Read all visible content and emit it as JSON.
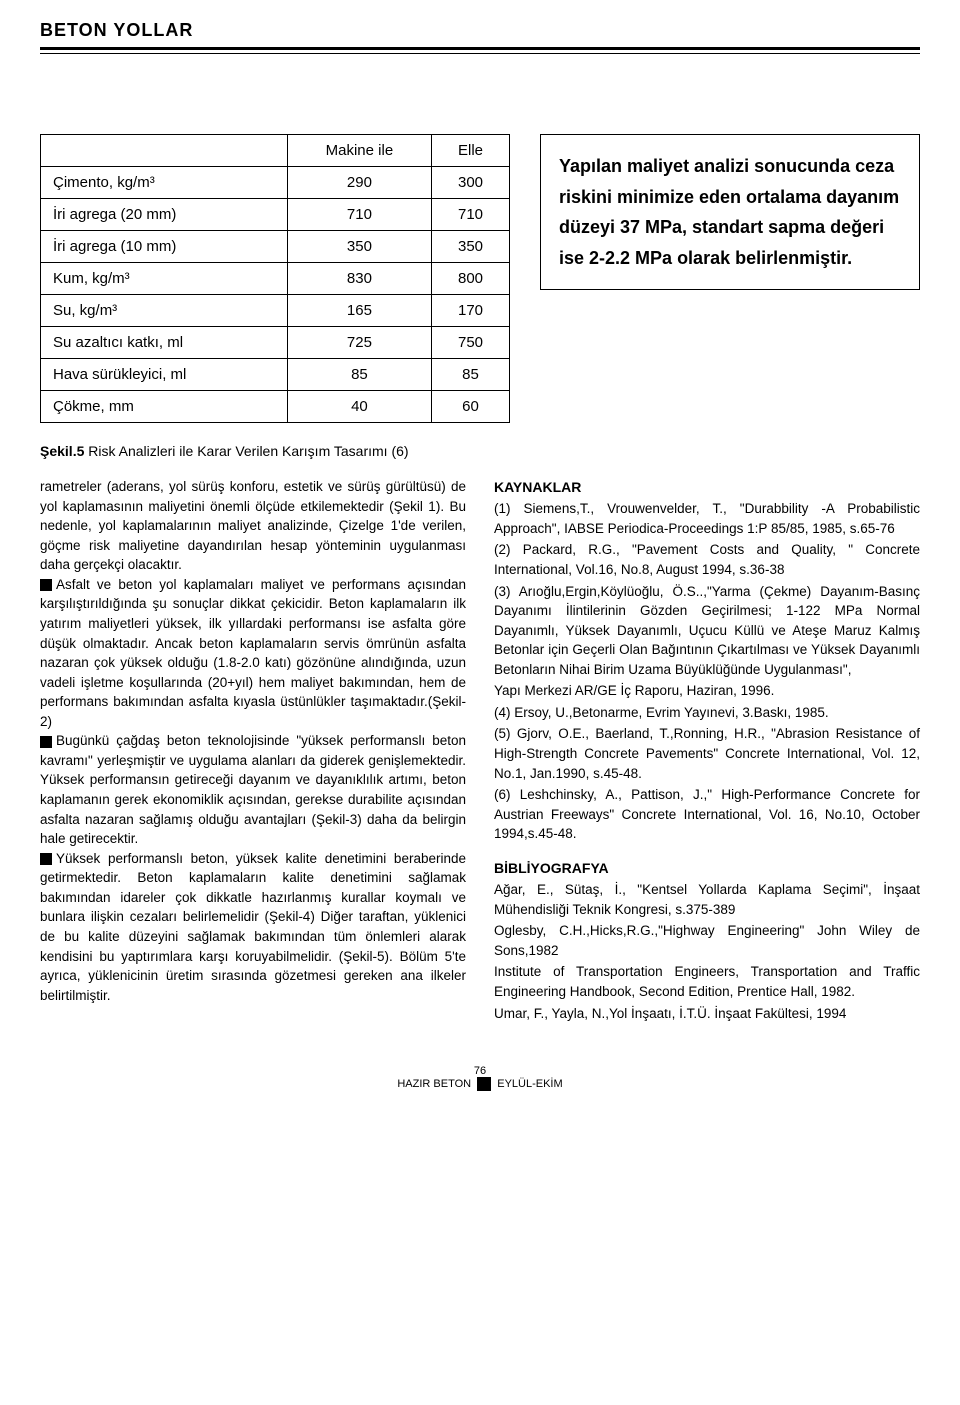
{
  "header": {
    "title": "BETON YOLLAR"
  },
  "table": {
    "col_headers": [
      "",
      "Makine ile",
      "Elle"
    ],
    "rows": [
      {
        "label": "Çimento, kg/m³",
        "v1": "290",
        "v2": "300"
      },
      {
        "label": "İri agrega (20 mm)",
        "v1": "710",
        "v2": "710"
      },
      {
        "label": "İri agrega (10 mm)",
        "v1": "350",
        "v2": "350"
      },
      {
        "label": "Kum, kg/m³",
        "v1": "830",
        "v2": "800"
      },
      {
        "label": "Su, kg/m³",
        "v1": "165",
        "v2": "170"
      },
      {
        "label": "Su azaltıcı katkı, ml",
        "v1": "725",
        "v2": "750"
      },
      {
        "label": "Hava sürükleyici, ml",
        "v1": "85",
        "v2": "85"
      },
      {
        "label": "Çökme, mm",
        "v1": "40",
        "v2": "60"
      }
    ]
  },
  "callout": {
    "text": "Yapılan maliyet analizi sonucunda ceza riskini minimize eden ortalama dayanım düzeyi 37 MPa, standart sapma değeri ise 2-2.2 MPa olarak belirlenmiştir."
  },
  "caption": {
    "label": "Şekil.5",
    "text": "Risk Analizleri ile Karar Verilen Karışım Tasarımı (6)"
  },
  "left_col": {
    "p1": "rametreler (aderans, yol sürüş konforu, estetik ve sürüş gürültüsü) de yol kaplamasının maliyetini önemli ölçüde etkilemektedir (Şekil 1). Bu nedenle, yol kaplamalarının maliyet analizinde, Çizelge 1'de verilen, göçme risk maliyetine dayandırılan hesap yönteminin uygulanması daha gerçekçi olacaktır.",
    "p2": "Asfalt ve beton yol kaplamaları maliyet ve performans açısından karşılıştırıldığında şu sonuçlar dikkat çekicidir. Beton kaplamaların ilk yatırım maliyetleri yüksek, ilk yıllardaki performansı ise asfalta göre düşük olmaktadır. Ancak beton kaplamaların servis ömrünün asfalta nazaran çok yüksek olduğu (1.8-2.0 katı) gözönüne alındığında, uzun vadeli işletme koşullarında (20+yıl) hem maliyet bakımından, hem de performans bakımından asfalta kıyasla üstünlükler taşımaktadır.(Şekil-2)",
    "p3": "Bugünkü çağdaş beton teknolojisinde \"yüksek performanslı beton kavramı\" yerleşmiştir ve uygulama alanları da giderek genişlemektedir. Yüksek performansın getireceği dayanım ve dayanıklılık artımı, beton kaplamanın gerek ekonomiklik açısından, gerekse durabilite açısından asfalta nazaran sağlamış olduğu avantajları (Şekil-3) daha da belirgin hale getirecektir.",
    "p4": "Yüksek performanslı beton, yüksek kalite denetimini beraberinde getirmektedir. Beton kaplamaların kalite denetimini sağlamak bakımından idareler çok dikkatle hazırlanmış kurallar koymalı ve bunlara ilişkin cezaları belirlemelidir (Şekil-4) Diğer taraftan, yüklenici de bu kalite düzeyini sağlamak bakımından tüm önlemleri alarak kendisini bu yaptırımlara karşı koruyabilmelidir. (Şekil-5). Bölüm 5'te ayrıca, yüklenicinin üretim sırasında gözetmesi gereken ana ilkeler belirtilmiştir."
  },
  "right_col": {
    "refs_heading": "KAYNAKLAR",
    "refs": [
      "(1) Siemens,T., Vrouwenvelder, T., \"Durabbility -A Probabilistic Approach\", IABSE Periodica-Proceedings 1:P 85/85, 1985, s.65-76",
      "(2) Packard, R.G., \"Pavement Costs and Quality, \" Concrete International, Vol.16, No.8, August 1994, s.36-38",
      "(3) Arıoğlu,Ergin,Köylüoğlu, Ö.S..,\"Yarma (Çekme) Dayanım-Basınç Dayanımı İlintilerinin Gözden Geçirilmesi; 1-122 MPa Normal Dayanımlı, Yüksek Dayanımlı, Uçucu Küllü ve Ateşe Maruz Kalmış Betonlar için Geçerli Olan Bağıntının Çıkartılması ve Yüksek Dayanımlı Betonların Nihai Birim Uzama Büyüklüğünde Uygulanması\",",
      "Yapı Merkezi AR/GE İç Raporu, Haziran, 1996.",
      "(4) Ersoy, U.,Betonarme, Evrim Yayınevi, 3.Baskı, 1985.",
      "(5) Gjorv, O.E., Baerland, T.,Ronning, H.R., \"Abrasion Resistance of High-Strength Concrete Pavements\" Concrete International, Vol. 12, No.1, Jan.1990, s.45-48.",
      "(6) Leshchinsky, A., Pattison, J.,\" High-Performance Concrete for Austrian Freeways\" Concrete International, Vol. 16, No.10, October 1994,s.45-48."
    ],
    "biblio_heading": "BİBLİYOGRAFYA",
    "biblio": [
      "Ağar, E., Sütaş, İ., \"Kentsel Yollarda Kaplama Seçimi\", İnşaat Mühendisliği Teknik Kongresi, s.375-389",
      "Oglesby, C.H.,Hicks,R.G.,\"Highway Engineering\" John Wiley de Sons,1982",
      "Institute of Transportation Engineers, Transportation and Traffic Engineering Handbook, Second Edition, Prentice Hall, 1982.",
      "Umar, F., Yayla, N.,Yol İnşaatı, İ.T.Ü. İnşaat Fakültesi, 1994"
    ]
  },
  "footer": {
    "page_num": "76",
    "left": "HAZIR BETON",
    "right": "EYLÜL-EKİM"
  }
}
